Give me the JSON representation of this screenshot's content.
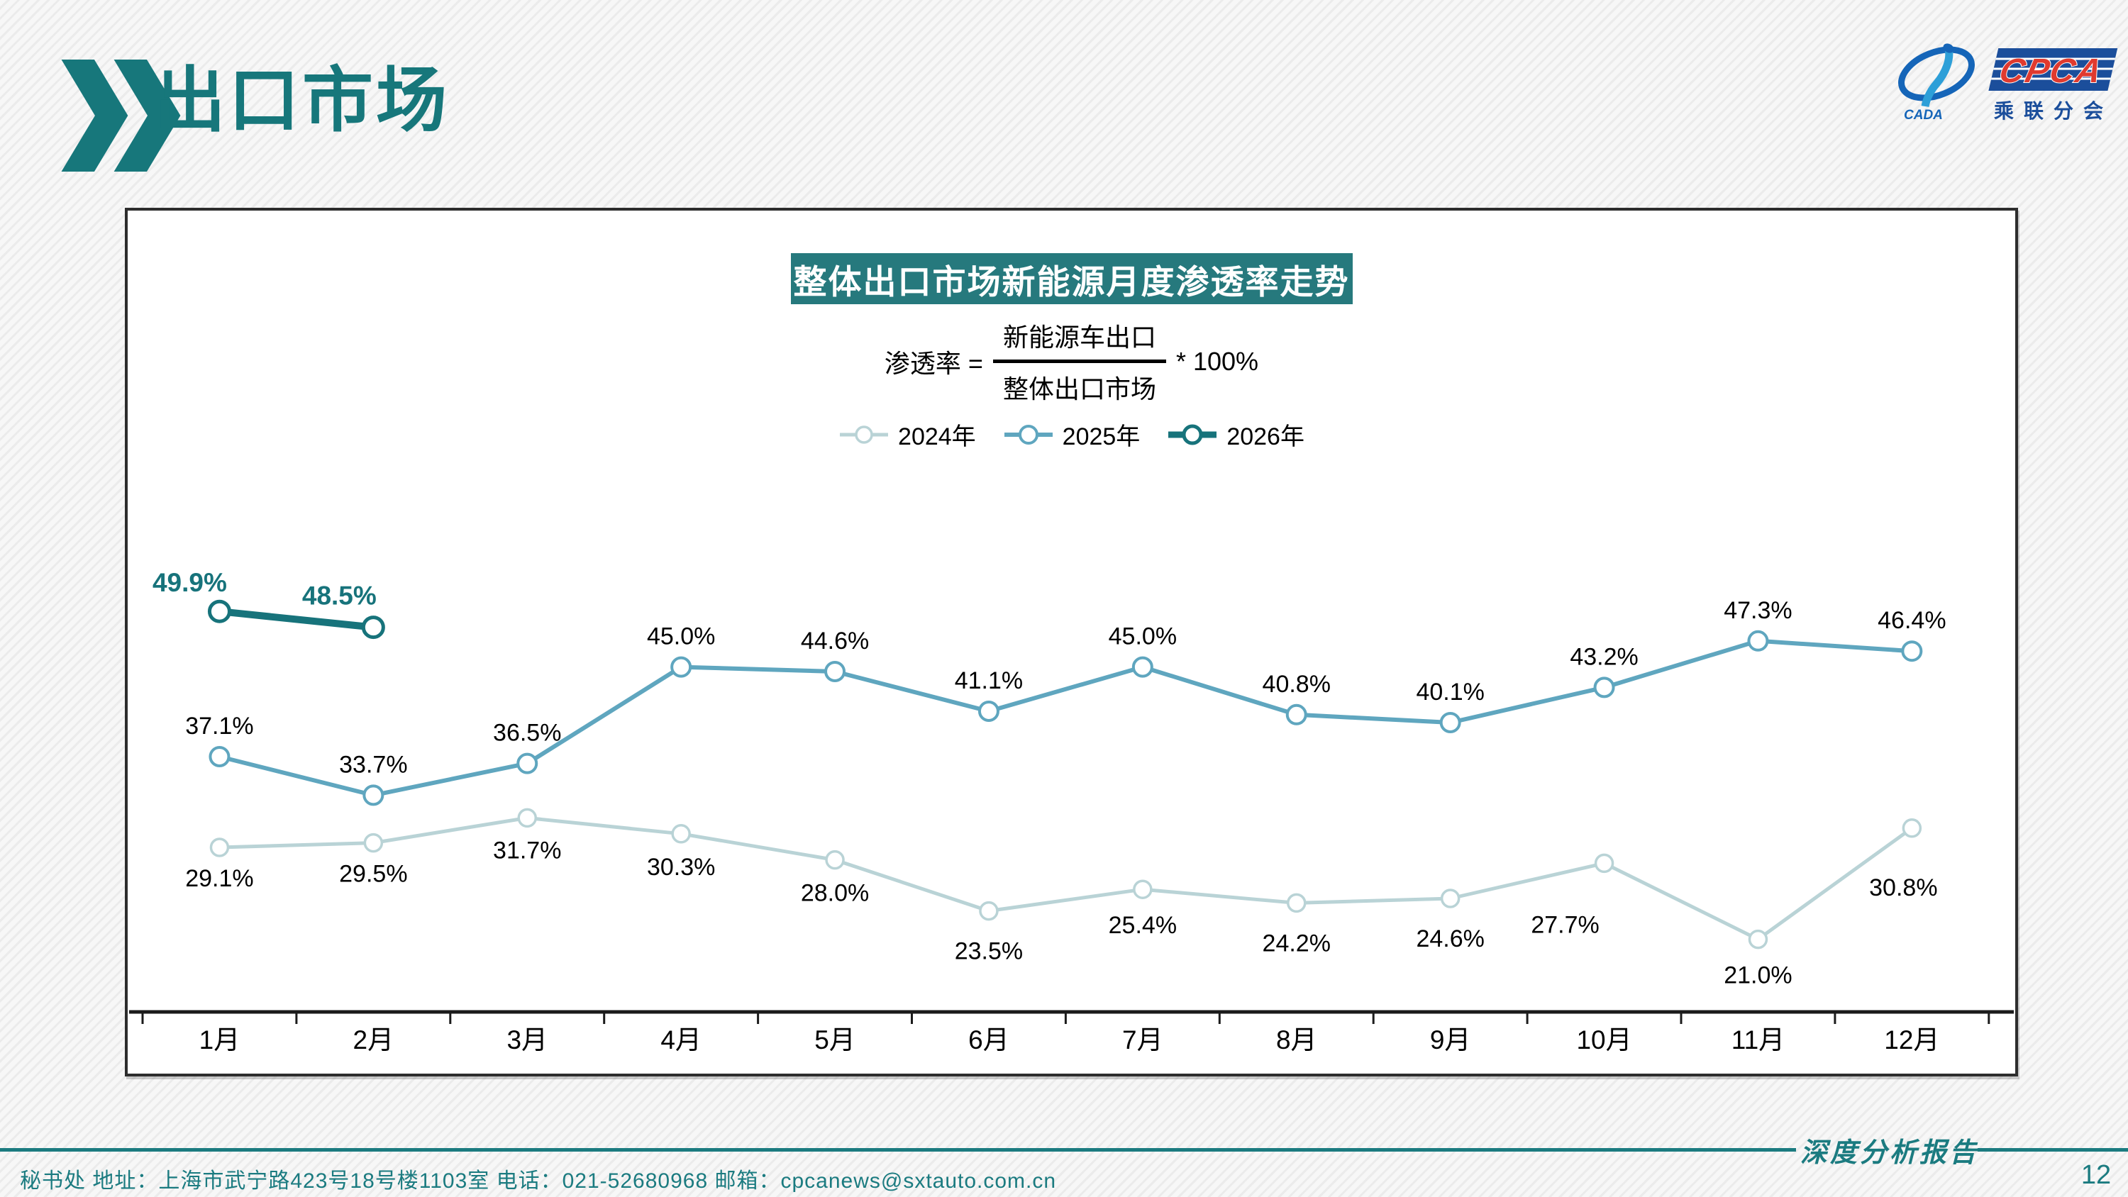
{
  "header": {
    "title": "出口市场"
  },
  "logo": {
    "cpca": "CPCA",
    "cada": "CADA",
    "branch": "乘联分会"
  },
  "chart": {
    "title": "整体出口市场新能源月度渗透率走势",
    "formula": {
      "lhs": "渗透率 =",
      "numerator": "新能源车出口",
      "denominator": "整体出口市场",
      "rhs": "* 100%"
    }
  },
  "chart_data": {
    "type": "line",
    "title": "整体出口市场新能源月度渗透率走势",
    "categories": [
      "1月",
      "2月",
      "3月",
      "4月",
      "5月",
      "6月",
      "7月",
      "8月",
      "9月",
      "10月",
      "11月",
      "12月"
    ],
    "series": [
      {
        "name": "2024年",
        "color": "#b9d3d6",
        "values": [
          29.1,
          29.5,
          31.7,
          30.3,
          28.0,
          23.5,
          25.4,
          24.2,
          24.6,
          27.7,
          21.0,
          30.8
        ]
      },
      {
        "name": "2025年",
        "color": "#5fa6bf",
        "values": [
          37.1,
          33.7,
          36.5,
          45.0,
          44.6,
          41.1,
          45.0,
          40.8,
          40.1,
          43.2,
          47.3,
          46.4
        ]
      },
      {
        "name": "2026年",
        "color": "#17737b",
        "values": [
          49.9,
          48.5
        ]
      }
    ],
    "unit": "%",
    "value_label_format": "x.x%",
    "legend_position": "top-center",
    "grid": false,
    "ylim": [
      15,
      55
    ]
  },
  "footer": {
    "left_text": "秘书处  地址：上海市武宁路423号18号楼1103室 电话：021-52680968  邮箱：cpcanews@sxtauto.com.cn",
    "report_label": "深度分析报告",
    "page_number": "12"
  },
  "colors": {
    "accent_teal": "#17777b",
    "title_bar_bg": "#26797d",
    "axis": "#1b1b1b",
    "series_2024": "#b9d3d6",
    "series_2025": "#5fa6bf",
    "series_2026": "#17737b"
  }
}
